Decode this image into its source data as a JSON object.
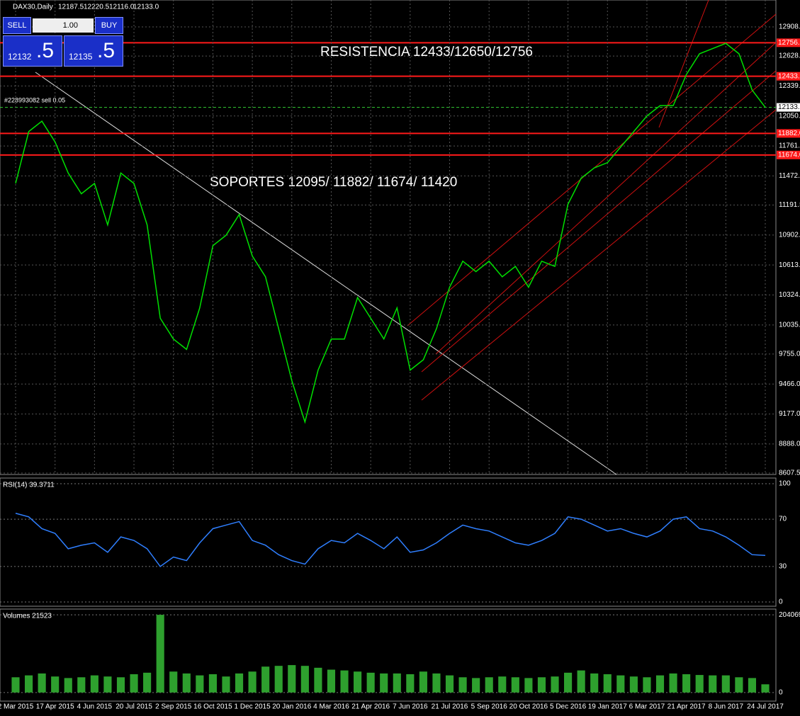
{
  "toolbar": {
    "symbol": "DAX30,Daily",
    "open": "12187.5",
    "high": "12220.5",
    "low": "12116.0",
    "close": "12133.0"
  },
  "trade_panel": {
    "sell": "SELL",
    "lot": "1.00",
    "buy": "BUY",
    "sell_price_main": "12132",
    "sell_price_pips": ".5",
    "buy_price_main": "12135",
    "buy_price_pips": ".5"
  },
  "order_label": "#228993082 sell 0.05",
  "chart_data": [
    {
      "type": "line",
      "color": "#00e000",
      "annotations": [
        "RESISTENCIA 12433/12650/12756",
        "SOPORTES 12095/  11882/  11674/  11420"
      ],
      "categories": [
        "2 Mar 2015",
        null,
        null,
        "17 Apr 2015",
        null,
        null,
        "4 Jun 2015",
        null,
        null,
        "20 Jul 2015",
        null,
        null,
        "2 Sep 2015",
        null,
        null,
        "16 Oct 2015",
        null,
        null,
        "1 Dec 2015",
        null,
        null,
        "20 Jan 2016",
        null,
        null,
        "4 Mar 2016",
        null,
        null,
        "21 Apr 2016",
        null,
        null,
        "7 Jun 2016",
        null,
        null,
        "21 Jul 2016",
        null,
        null,
        "5 Sep 2016",
        null,
        null,
        "20 Oct 2016",
        null,
        null,
        "5 Dec 2016",
        null,
        null,
        "19 Jan 2017",
        null,
        null,
        "6 Mar 2017",
        null,
        null,
        "21 Apr 2017",
        null,
        null,
        "8 Jun 2017",
        null,
        null,
        "24 Jul 2017"
      ],
      "values": [
        11400,
        11900,
        12000,
        11800,
        11500,
        11300,
        11400,
        11000,
        11500,
        11400,
        11000,
        10100,
        9900,
        9800,
        10200,
        10800,
        10900,
        11100,
        10700,
        10500,
        10000,
        9500,
        9100,
        9600,
        9900,
        9900,
        10300,
        10100,
        9900,
        10200,
        9600,
        9700,
        10000,
        10400,
        10650,
        10550,
        10650,
        10500,
        10600,
        10400,
        10650,
        10600,
        11200,
        11450,
        11550,
        11600,
        11750,
        11900,
        12050,
        12150,
        12150,
        12450,
        12650,
        12700,
        12750,
        12650,
        12300,
        12133
      ],
      "ylim": [
        8594,
        13168
      ],
      "yticks": [
        12908.5,
        {
          "value": 12628,
          "label": "12628.0"
        },
        {
          "value": 12339,
          "label": "12339.0"
        },
        {
          "value": 12050,
          "label": "12050.0"
        },
        {
          "value": 11761,
          "label": "11761.0"
        },
        {
          "value": 11472,
          "label": "11472.0"
        },
        11191.5,
        10902.5,
        10613.5,
        10324.5,
        10035.5,
        {
          "value": 9755,
          "label": "9755.0"
        },
        {
          "value": 9466,
          "label": "9466.0"
        },
        {
          "value": 9177,
          "label": "9177.0"
        },
        {
          "value": 8888,
          "label": "8888.0"
        },
        8607.5
      ],
      "grid": true,
      "levels": [
        {
          "value": 12756,
          "label": "12756.0"
        },
        {
          "value": 12433,
          "label": "12433.0"
        },
        {
          "value": 11882,
          "label": "11882.0"
        },
        {
          "value": 11674,
          "label": "11674.0"
        }
      ],
      "level_color": "#ff1a1a",
      "current": {
        "value": 12133,
        "label": "12133.0"
      }
    },
    {
      "type": "line",
      "title": "RSI(14) 39.3711",
      "color": "#2f7fff",
      "values": [
        75,
        72,
        62,
        58,
        45,
        48,
        50,
        42,
        55,
        52,
        45,
        30,
        38,
        35,
        50,
        62,
        65,
        68,
        52,
        48,
        40,
        35,
        32,
        45,
        52,
        50,
        58,
        52,
        45,
        55,
        42,
        44,
        50,
        58,
        65,
        62,
        60,
        55,
        50,
        48,
        52,
        58,
        72,
        70,
        65,
        60,
        62,
        58,
        55,
        60,
        70,
        72,
        62,
        60,
        55,
        48,
        40,
        39.37
      ],
      "ylim": [
        -3.6,
        104.8
      ],
      "yticks": [
        100,
        70,
        30,
        0
      ]
    },
    {
      "type": "bar",
      "title": "Volumes 21523",
      "color": "#2ea02e",
      "values": [
        40000,
        45000,
        50000,
        42000,
        38000,
        40000,
        45000,
        42000,
        40000,
        48000,
        52000,
        204069,
        55000,
        50000,
        45000,
        48000,
        42000,
        50000,
        55000,
        68000,
        70000,
        72000,
        70000,
        65000,
        60000,
        58000,
        55000,
        52000,
        50000,
        50000,
        48000,
        55000,
        50000,
        45000,
        40000,
        38000,
        40000,
        42000,
        40000,
        38000,
        40000,
        42000,
        52000,
        58000,
        50000,
        48000,
        45000,
        42000,
        40000,
        45000,
        50000,
        48000,
        46000,
        45000,
        45000,
        40000,
        38000,
        21523
      ],
      "ylim": [
        -22674,
        219185
      ],
      "yticks": [
        204069,
        0
      ]
    }
  ]
}
